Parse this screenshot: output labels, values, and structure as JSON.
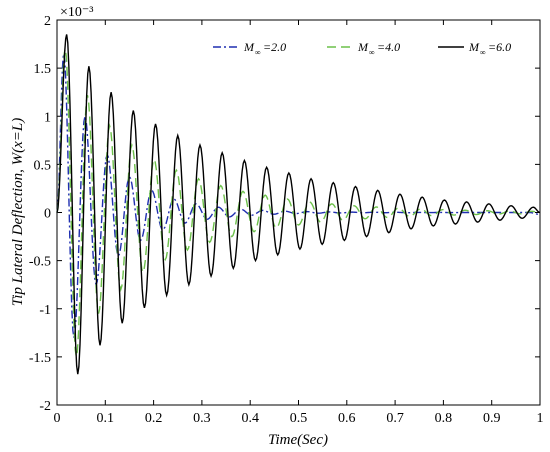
{
  "chart_data": {
    "type": "line",
    "xlabel": "Time(Sec)",
    "ylabel": "Tip Lateral Deflection, W(x=L)",
    "y_scale_note": "×10⁻³",
    "xlim": [
      0,
      1
    ],
    "ylim": [
      -2,
      2
    ],
    "x_ticks": [
      "0",
      "0.1",
      "0.2",
      "0.3",
      "0.4",
      "0.5",
      "0.6",
      "0.7",
      "0.8",
      "0.9",
      "1"
    ],
    "y_ticks": [
      "-2",
      "-1.5",
      "-1",
      "-0.5",
      "0",
      "0.5",
      "1",
      "1.5",
      "2"
    ],
    "x_tick_values": [
      0,
      0.1,
      0.2,
      0.3,
      0.4,
      0.5,
      0.6,
      0.7,
      0.8,
      0.9,
      1
    ],
    "y_tick_values": [
      -2,
      -1.5,
      -1,
      -0.5,
      0,
      0.5,
      1,
      1.5,
      2
    ],
    "legend_placement": "top-right",
    "grid": false,
    "series": [
      {
        "name": "M∞=2.0",
        "legend_symbol": "M",
        "legend_sub": "∞",
        "legend_value": "=2.0",
        "color": "#1f2fb0",
        "dash": "8 3 2 3",
        "x": [
          0.0,
          0.014,
          0.035,
          0.058,
          0.081,
          0.104,
          0.127,
          0.15,
          0.173,
          0.196,
          0.219,
          0.242,
          0.265,
          0.288,
          0.311,
          0.334,
          0.357,
          0.38,
          0.403,
          0.426,
          0.449,
          0.472,
          0.495,
          0.518,
          0.541,
          0.564,
          0.587,
          0.61,
          0.633,
          0.656,
          0.679,
          0.702,
          0.725,
          0.748,
          0.771,
          0.794,
          0.817,
          0.84,
          0.863,
          0.886,
          0.909,
          0.932,
          0.955,
          0.978,
          1.0
        ],
        "y": [
          0.0,
          1.65,
          -1.3,
          1.0,
          -0.75,
          0.6,
          -0.45,
          0.37,
          -0.29,
          0.23,
          -0.18,
          0.14,
          -0.11,
          0.09,
          -0.07,
          0.055,
          -0.045,
          0.035,
          -0.028,
          0.022,
          -0.018,
          0.014,
          -0.011,
          0.009,
          -0.007,
          0.006,
          -0.005,
          0.004,
          -0.003,
          0.003,
          -0.002,
          0.002,
          -0.002,
          0.001,
          -0.001,
          0.001,
          -0.001,
          0.0,
          0.0,
          0.0,
          0.0,
          0.0,
          0.0,
          0.0,
          -0.02
        ]
      },
      {
        "name": "M∞=4.0",
        "legend_symbol": "M",
        "legend_sub": "∞",
        "legend_value": "=4.0",
        "color": "#6cc04a",
        "dash": "9 5",
        "x": [
          0.0,
          0.017,
          0.04,
          0.063,
          0.086,
          0.109,
          0.132,
          0.155,
          0.178,
          0.201,
          0.224,
          0.247,
          0.27,
          0.293,
          0.316,
          0.339,
          0.362,
          0.385,
          0.408,
          0.431,
          0.454,
          0.477,
          0.5,
          0.523,
          0.546,
          0.569,
          0.592,
          0.615,
          0.638,
          0.661,
          0.684,
          0.707,
          0.73,
          0.753,
          0.776,
          0.799,
          0.822,
          0.845,
          0.868,
          0.891,
          0.914,
          0.937,
          0.96,
          0.983,
          1.0
        ],
        "y": [
          0.0,
          1.7,
          -1.5,
          1.22,
          -1.05,
          0.9,
          -0.8,
          0.7,
          -0.62,
          0.55,
          -0.49,
          0.44,
          -0.39,
          0.35,
          -0.31,
          0.28,
          -0.25,
          0.22,
          -0.2,
          0.18,
          -0.16,
          0.14,
          -0.13,
          0.11,
          -0.1,
          0.09,
          -0.08,
          0.07,
          -0.065,
          0.058,
          -0.052,
          0.046,
          -0.041,
          0.037,
          -0.033,
          0.03,
          -0.027,
          0.024,
          -0.021,
          0.019,
          -0.017,
          0.015,
          -0.014,
          0.012,
          0.0
        ]
      },
      {
        "name": "M∞=6.0",
        "legend_symbol": "M",
        "legend_sub": "∞",
        "legend_value": "=6.0",
        "color": "#000000",
        "dash": "",
        "x": [
          0.0,
          0.02,
          0.043,
          0.066,
          0.089,
          0.112,
          0.135,
          0.158,
          0.181,
          0.204,
          0.227,
          0.25,
          0.273,
          0.296,
          0.319,
          0.342,
          0.365,
          0.388,
          0.411,
          0.434,
          0.457,
          0.48,
          0.503,
          0.526,
          0.549,
          0.572,
          0.595,
          0.618,
          0.641,
          0.664,
          0.687,
          0.71,
          0.733,
          0.756,
          0.779,
          0.802,
          0.825,
          0.848,
          0.871,
          0.894,
          0.917,
          0.94,
          0.963,
          0.986,
          1.0
        ],
        "y": [
          0.0,
          1.85,
          -1.68,
          1.52,
          -1.38,
          1.25,
          -1.15,
          1.06,
          -0.99,
          0.92,
          -0.86,
          0.8,
          -0.75,
          0.7,
          -0.66,
          0.62,
          -0.58,
          0.54,
          -0.5,
          0.47,
          -0.44,
          0.41,
          -0.38,
          0.35,
          -0.33,
          0.31,
          -0.29,
          0.27,
          -0.25,
          0.23,
          -0.21,
          0.19,
          -0.17,
          0.16,
          -0.14,
          0.13,
          -0.12,
          0.11,
          -0.1,
          0.09,
          -0.08,
          0.07,
          -0.06,
          0.055,
          0.0
        ]
      }
    ]
  }
}
